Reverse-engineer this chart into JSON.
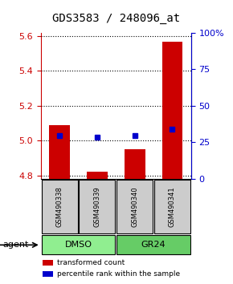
{
  "title": "GDS3583 / 248096_at",
  "samples": [
    "GSM490338",
    "GSM490339",
    "GSM490340",
    "GSM490341"
  ],
  "bar_values": [
    5.09,
    4.82,
    4.95,
    5.57
  ],
  "blue_values": [
    5.03,
    5.02,
    5.03,
    5.065
  ],
  "ylim_left": [
    4.78,
    5.62
  ],
  "ylim_right": [
    0,
    100
  ],
  "yticks_left": [
    4.8,
    5.0,
    5.2,
    5.4,
    5.6
  ],
  "yticks_right": [
    0,
    25,
    50,
    75,
    100
  ],
  "ytick_labels_right": [
    "0",
    "25",
    "50",
    "75",
    "100%"
  ],
  "bar_color": "#cc0000",
  "blue_color": "#0000cc",
  "bar_bottom": 4.78,
  "groups": [
    {
      "label": "DMSO",
      "samples": [
        0,
        1
      ],
      "color": "#90ee90"
    },
    {
      "label": "GR24",
      "samples": [
        2,
        3
      ],
      "color": "#66cc66"
    }
  ],
  "group_label": "agent",
  "legend_items": [
    {
      "color": "#cc0000",
      "label": "transformed count"
    },
    {
      "color": "#0000cc",
      "label": "percentile rank within the sample"
    }
  ],
  "title_fontsize": 10,
  "axis_label_color_left": "#cc0000",
  "axis_label_color_right": "#0000cc",
  "background_color": "#ffffff",
  "plot_bg": "#ffffff",
  "sample_box_color": "#cccccc"
}
